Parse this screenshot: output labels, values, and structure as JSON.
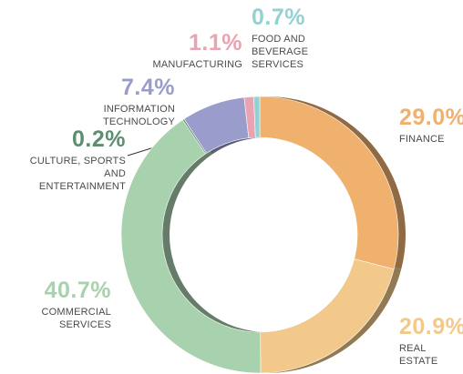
{
  "chart_data": {
    "type": "donut",
    "categories": [
      "FINANCE",
      "REAL ESTATE",
      "COMMERCIAL SERVICES",
      "CULTURE, SPORTS AND ENTERTAINMENT",
      "INFORMATION TECHNOLOGY",
      "MANUFACTURING",
      "FOOD AND BEVERAGE SERVICES"
    ],
    "values": [
      29.0,
      20.9,
      40.7,
      0.2,
      7.4,
      1.1,
      0.7
    ],
    "value_labels": [
      "29.0%",
      "20.9%",
      "40.7%",
      "0.2%",
      "7.4%",
      "1.1%",
      "0.7%"
    ],
    "colors": [
      "#f0b06e",
      "#f2c98a",
      "#a8d1ae",
      "#5f8d6f",
      "#9a9dcc",
      "#e9a3b1",
      "#93d1d2"
    ]
  }
}
